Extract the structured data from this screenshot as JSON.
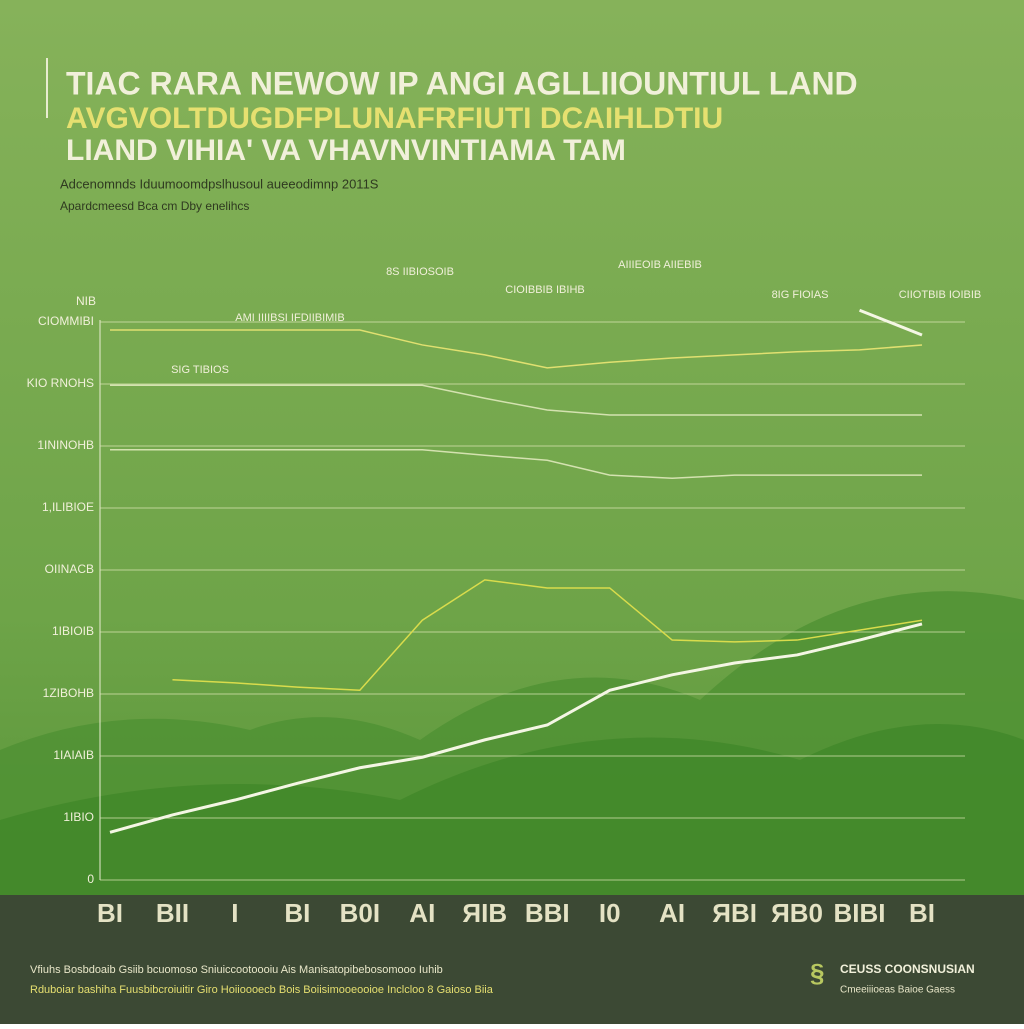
{
  "chart_data": {
    "type": "line",
    "title": [
      "TIAC RARA NEWOW IP ANGI AGLLIIOUNTIUL LAND",
      "AVGVOLTDUGDFPLUNAFRFIUTI DCAIHLDTIU",
      "LIAND VIHIA' VA VHAVNVINTIAMA TAM"
    ],
    "subtitle": [
      "Adcenomnds Iduumoomdpslhusoul aueeodimnp 2011S",
      "Apardcmeesd Bca cm Dby enelihcs"
    ],
    "y_label": "NIB",
    "categories": [
      "BI",
      "BII",
      "I",
      "BI",
      "B0I",
      "AI",
      "ЯIB",
      "BBI",
      "I0",
      "AI",
      "ЯBI",
      "ЯB0",
      "BIBI",
      "BI"
    ],
    "ylim": [
      0,
      9.5
    ],
    "yticks": [
      0,
      {
        "value": 1,
        "label": "1IBIO"
      },
      {
        "value": 2,
        "label": "1IAIAIB"
      },
      {
        "value": 3,
        "label": "1ZIBOHB"
      },
      {
        "value": 4,
        "label": "1IBIOIB"
      },
      {
        "value": 5,
        "label": "OIINACB"
      },
      {
        "value": 6,
        "label": "1,ILIBIOE"
      },
      {
        "value": 7,
        "label": "1ININOHB"
      },
      {
        "value": 8,
        "label": "KIO RNOHS"
      },
      {
        "value": 9,
        "label": "CIOMMIBI"
      }
    ],
    "grid": true,
    "series": [
      {
        "color": "#f4f6e4",
        "values": [
          0.77,
          1.05,
          1.29,
          1.56,
          1.81,
          1.98,
          2.26,
          2.5,
          3.06,
          3.31,
          3.5,
          3.63,
          3.87,
          4.13
        ]
      },
      {
        "color": "#d9dc4c",
        "values": [
          null,
          3.23,
          3.18,
          3.11,
          3.06,
          4.19,
          4.84,
          4.71,
          4.71,
          3.87,
          3.84,
          3.87,
          4.03,
          4.19
        ]
      },
      {
        "color": "#e0e070",
        "values": [
          8.87,
          8.87,
          8.87,
          8.87,
          8.87,
          8.63,
          8.47,
          8.26,
          8.35,
          8.42,
          8.47,
          8.52,
          8.55,
          8.63
        ]
      },
      {
        "color": "#d4e2b0",
        "values": [
          7.98,
          7.98,
          7.98,
          7.98,
          7.98,
          7.98,
          7.77,
          7.58,
          7.5,
          7.5,
          7.5,
          7.5,
          7.5,
          7.5
        ]
      },
      {
        "color": "#d4e2b0",
        "values": [
          6.94,
          6.94,
          6.94,
          6.94,
          6.94,
          6.94,
          6.85,
          6.77,
          6.53,
          6.48,
          6.53,
          6.53,
          6.53,
          6.53
        ]
      },
      {
        "color": "#f4f6e4",
        "values": [
          null,
          null,
          null,
          null,
          null,
          null,
          null,
          null,
          null,
          null,
          null,
          null,
          9.19,
          8.79
        ]
      }
    ],
    "annotations": [
      "8S IIBIOSOIB",
      "CIOIBBIB IBIHB",
      "AMI IIIIBSI IFDIIBIMIB",
      "SIG TIBIOS",
      "8IG FIOIAS",
      "CIIOTBIB IOIBIB",
      "AIIIEOIB AIIEBIB"
    ],
    "footer": [
      "Vfiuhs Bosbdoaib Gsiib bcuomoso Sniuiccootoooiu Ais Manisatopibebosomooo Iuhib",
      "Rduboiar bashiha Fuusbibcroiuitir Giro Hoiioooecb Bois Boiisimooeooioe Inclcloo 8 Gaioso Biia"
    ],
    "logo": [
      "CEUSS COONSNUSIAN",
      "Cmeeiiioeas Baioe Gaess"
    ]
  }
}
